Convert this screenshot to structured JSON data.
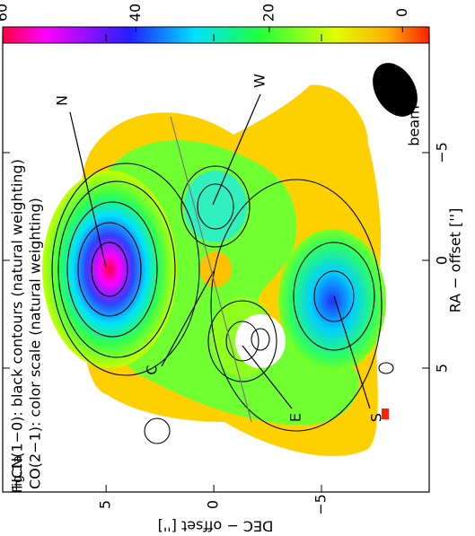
{
  "chart_data": {
    "type": "map",
    "legend": [
      "HCN(1−0): black contours (natural weighting)",
      "CO(2−1): color scale (natural weighting)"
    ],
    "figure_label": "Fig.1a",
    "beam_label": "beam",
    "sources": [
      "N",
      "W",
      "C",
      "E",
      "S"
    ],
    "xlabel": "DEC − offset ['']",
    "ylabel": "RA − offset ['']",
    "xlim": [
      9.8,
      -10
    ],
    "xticks": [
      5,
      0,
      {
        "value": -5,
        "label": "−5"
      }
    ],
    "ylim": [
      -10.5,
      10.75
    ],
    "yticks": [
      5,
      0,
      {
        "value": -5,
        "label": "−5"
      }
    ],
    "colorbar": {
      "lim": [
        -4,
        60
      ],
      "ticks": [
        0,
        20,
        40,
        60
      ]
    }
  }
}
